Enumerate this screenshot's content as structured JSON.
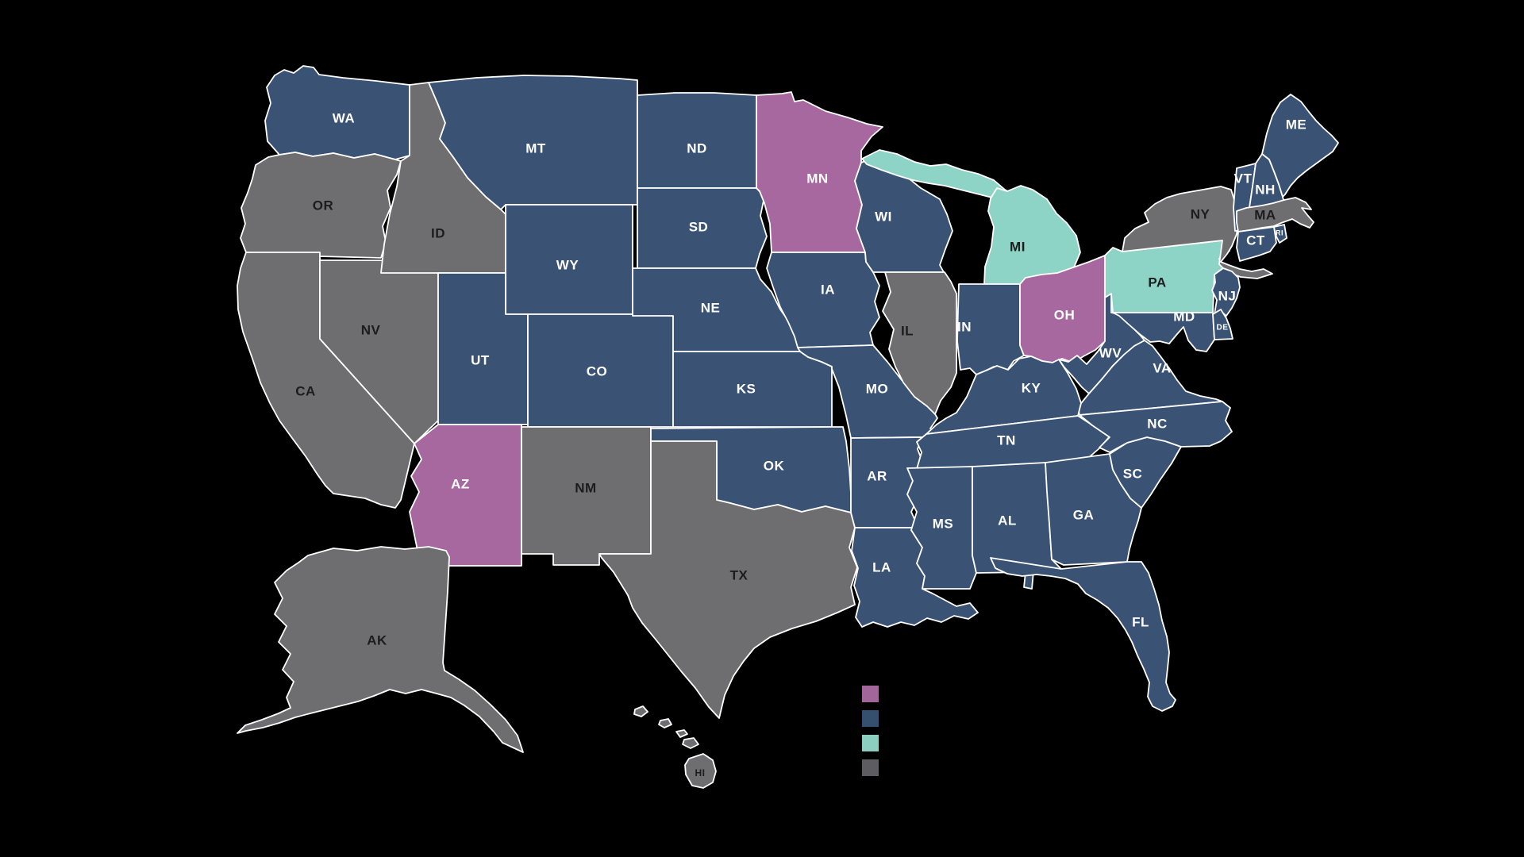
{
  "page": {
    "background": "#000000"
  },
  "map": {
    "stroke_color": "#ffffff",
    "label_colors": {
      "light": "#ffffff",
      "dark": "#1c1c1e"
    },
    "default_label_size": 17
  },
  "categories": {
    "purple": {
      "map_color": "#a768a0",
      "legend_color": "#a2669a"
    },
    "blue": {
      "map_color": "#3a5375",
      "legend_color": "#35506f"
    },
    "teal": {
      "map_color": "#8dd4c6",
      "legend_color": "#8ccfc1"
    },
    "gray": {
      "map_color": "#6e6e70",
      "legend_color": "#5d5d61"
    }
  },
  "legend": {
    "items": [
      {
        "category": "purple",
        "label": ""
      },
      {
        "category": "blue",
        "label": ""
      },
      {
        "category": "teal",
        "label": ""
      },
      {
        "category": "gray",
        "label": ""
      }
    ]
  },
  "states": [
    {
      "abbr": "WA",
      "category": "blue",
      "label": "light"
    },
    {
      "abbr": "OR",
      "category": "gray",
      "label": "dark"
    },
    {
      "abbr": "CA",
      "category": "gray",
      "label": "dark"
    },
    {
      "abbr": "NV",
      "category": "gray",
      "label": "dark"
    },
    {
      "abbr": "ID",
      "category": "gray",
      "label": "dark"
    },
    {
      "abbr": "MT",
      "category": "blue",
      "label": "light"
    },
    {
      "abbr": "WY",
      "category": "blue",
      "label": "light"
    },
    {
      "abbr": "UT",
      "category": "blue",
      "label": "light"
    },
    {
      "abbr": "CO",
      "category": "blue",
      "label": "light"
    },
    {
      "abbr": "AZ",
      "category": "purple",
      "label": "light"
    },
    {
      "abbr": "NM",
      "category": "gray",
      "label": "dark"
    },
    {
      "abbr": "ND",
      "category": "blue",
      "label": "light"
    },
    {
      "abbr": "SD",
      "category": "blue",
      "label": "light"
    },
    {
      "abbr": "NE",
      "category": "blue",
      "label": "light"
    },
    {
      "abbr": "KS",
      "category": "blue",
      "label": "light"
    },
    {
      "abbr": "OK",
      "category": "blue",
      "label": "light"
    },
    {
      "abbr": "TX",
      "category": "gray",
      "label": "dark"
    },
    {
      "abbr": "MN",
      "category": "purple",
      "label": "light"
    },
    {
      "abbr": "IA",
      "category": "blue",
      "label": "light"
    },
    {
      "abbr": "MO",
      "category": "blue",
      "label": "light"
    },
    {
      "abbr": "AR",
      "category": "blue",
      "label": "light"
    },
    {
      "abbr": "LA",
      "category": "blue",
      "label": "light"
    },
    {
      "abbr": "WI",
      "category": "blue",
      "label": "light"
    },
    {
      "abbr": "IL",
      "category": "gray",
      "label": "dark"
    },
    {
      "abbr": "MI",
      "category": "teal",
      "label": "dark"
    },
    {
      "abbr": "IN",
      "category": "blue",
      "label": "light"
    },
    {
      "abbr": "OH",
      "category": "purple",
      "label": "light"
    },
    {
      "abbr": "KY",
      "category": "blue",
      "label": "light"
    },
    {
      "abbr": "TN",
      "category": "blue",
      "label": "light"
    },
    {
      "abbr": "MS",
      "category": "blue",
      "label": "light"
    },
    {
      "abbr": "AL",
      "category": "blue",
      "label": "light"
    },
    {
      "abbr": "GA",
      "category": "blue",
      "label": "light"
    },
    {
      "abbr": "SC",
      "category": "blue",
      "label": "light"
    },
    {
      "abbr": "NC",
      "category": "blue",
      "label": "light"
    },
    {
      "abbr": "VA",
      "category": "blue",
      "label": "light"
    },
    {
      "abbr": "WV",
      "category": "blue",
      "label": "light"
    },
    {
      "abbr": "FL",
      "category": "blue",
      "label": "light"
    },
    {
      "abbr": "PA",
      "category": "teal",
      "label": "dark"
    },
    {
      "abbr": "NY",
      "category": "gray",
      "label": "dark"
    },
    {
      "abbr": "NJ",
      "category": "blue",
      "label": "light"
    },
    {
      "abbr": "MD",
      "category": "blue",
      "label": "light"
    },
    {
      "abbr": "DE",
      "category": "blue",
      "label": "light",
      "label_size": 10
    },
    {
      "abbr": "VT",
      "category": "blue",
      "label": "light"
    },
    {
      "abbr": "NH",
      "category": "blue",
      "label": "light"
    },
    {
      "abbr": "MA",
      "category": "gray",
      "label": "dark"
    },
    {
      "abbr": "CT",
      "category": "blue",
      "label": "light"
    },
    {
      "abbr": "RI",
      "category": "blue",
      "label": "light",
      "label_size": 9
    },
    {
      "abbr": "ME",
      "category": "blue",
      "label": "light"
    },
    {
      "abbr": "AK",
      "category": "gray",
      "label": "dark"
    },
    {
      "abbr": "HI",
      "category": "gray",
      "label": "dark",
      "label_size": 12
    }
  ]
}
